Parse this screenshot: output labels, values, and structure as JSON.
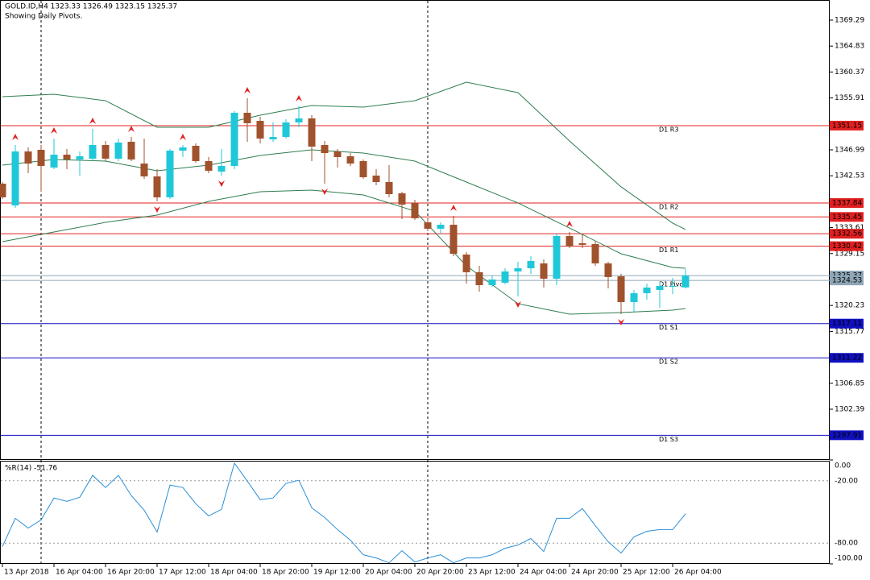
{
  "chart_data": [
    {
      "type": "candlestick",
      "title": "GOLD.ID,H4  1323.33 1326.49 1323.15 1325.37",
      "subtitle": "Showing Daily Pivots.",
      "categories": [
        "13 Apr 2018",
        null,
        null,
        null,
        "16 Apr 04:00",
        null,
        null,
        null,
        "16 Apr 20:00",
        null,
        null,
        null,
        "17 Apr 12:00",
        null,
        null,
        null,
        "18 Apr 04:00",
        null,
        null,
        null,
        "18 Apr 20:00",
        null,
        null,
        null,
        "19 Apr 12:00",
        null,
        null,
        null,
        "20 Apr 04:00",
        null,
        null,
        null,
        "20 Apr 20:00",
        null,
        null,
        null,
        "23 Apr 12:00",
        null,
        null,
        null,
        "24 Apr 04:00",
        null,
        null,
        null,
        "24 Apr 20:00",
        null,
        null,
        null,
        "25 Apr 12:00",
        null,
        null,
        null,
        "26 Apr 04:00",
        null
      ],
      "ohlc": [
        [
          1341.17,
          1341.45,
          1338.54,
          1338.82
        ],
        [
          1337.43,
          1347.82,
          1337.02,
          1346.71
        ],
        [
          1346.71,
          1347.4,
          1342.97,
          1344.63
        ],
        [
          1346.99,
          1347.82,
          1339.79,
          1344.22
        ],
        [
          1343.94,
          1348.93,
          1343.66,
          1346.16
        ],
        [
          1346.16,
          1347.13,
          1343.66,
          1345.33
        ],
        [
          1345.33,
          1346.71,
          1342.56,
          1345.88
        ],
        [
          1345.47,
          1350.59,
          1345.05,
          1347.82
        ],
        [
          1347.82,
          1348.51,
          1345.05,
          1345.47
        ],
        [
          1345.47,
          1348.93,
          1345.05,
          1348.24
        ],
        [
          1348.37,
          1349.2,
          1345.05,
          1345.33
        ],
        [
          1344.63,
          1348.93,
          1342.0,
          1342.42
        ],
        [
          1342.42,
          1343.66,
          1338.12,
          1338.82
        ],
        [
          1338.82,
          1347.13,
          1338.54,
          1346.85
        ],
        [
          1346.85,
          1347.82,
          1345.74,
          1347.4
        ],
        [
          1347.68,
          1348.1,
          1344.77,
          1345.05
        ],
        [
          1345.05,
          1345.74,
          1342.97,
          1343.39
        ],
        [
          1343.25,
          1347.13,
          1342.56,
          1344.22
        ],
        [
          1344.22,
          1353.64,
          1343.66,
          1353.36
        ],
        [
          1353.36,
          1355.85,
          1348.37,
          1351.56
        ],
        [
          1351.97,
          1352.67,
          1348.1,
          1348.93
        ],
        [
          1348.79,
          1351.7,
          1348.37,
          1349.2
        ],
        [
          1349.2,
          1352.25,
          1348.93,
          1351.7
        ],
        [
          1351.7,
          1354.47,
          1350.87,
          1352.39
        ],
        [
          1352.39,
          1352.94,
          1345.05,
          1347.54
        ],
        [
          1347.82,
          1348.51,
          1341.17,
          1346.43
        ],
        [
          1346.71,
          1347.13,
          1343.94,
          1345.74
        ],
        [
          1345.88,
          1346.43,
          1344.22,
          1344.63
        ],
        [
          1345.05,
          1345.33,
          1342.0,
          1342.28
        ],
        [
          1342.56,
          1343.66,
          1340.89,
          1341.45
        ],
        [
          1341.45,
          1344.36,
          1338.82,
          1339.37
        ],
        [
          1339.51,
          1339.79,
          1335.08,
          1337.57
        ],
        [
          1337.85,
          1338.4,
          1334.94,
          1335.22
        ],
        [
          1334.52,
          1335.08,
          1333.0,
          1333.42
        ],
        [
          1333.42,
          1334.52,
          1332.58,
          1334.11
        ],
        [
          1334.11,
          1335.63,
          1328.71,
          1329.12
        ],
        [
          1328.98,
          1329.4,
          1324.0,
          1325.94
        ],
        [
          1325.94,
          1327.04,
          1322.61,
          1323.72
        ],
        [
          1323.72,
          1325.38,
          1323.44,
          1324.69
        ],
        [
          1324.14,
          1326.63,
          1323.86,
          1326.08
        ],
        [
          1326.08,
          1327.74,
          1321.78,
          1326.63
        ],
        [
          1326.63,
          1328.71,
          1325.66,
          1327.88
        ],
        [
          1327.46,
          1328.15,
          1323.31,
          1324.83
        ],
        [
          1324.83,
          1332.58,
          1323.72,
          1332.17
        ],
        [
          1332.17,
          1332.86,
          1330.09,
          1330.37
        ],
        [
          1330.92,
          1332.58,
          1330.09,
          1330.65
        ],
        [
          1330.78,
          1331.2,
          1327.04,
          1327.46
        ],
        [
          1327.46,
          1327.74,
          1323.17,
          1325.11
        ],
        [
          1325.24,
          1325.66,
          1318.73,
          1320.81
        ],
        [
          1320.81,
          1322.89,
          1319.15,
          1322.34
        ],
        [
          1322.34,
          1324.0,
          1321.23,
          1323.31
        ],
        [
          1322.89,
          1324.27,
          1319.84,
          1323.58
        ],
        [
          1323.44,
          1324.97,
          1322.2,
          1323.58
        ],
        [
          1323.33,
          1326.49,
          1323.15,
          1325.37
        ]
      ],
      "up_color": "#1fc8d8",
      "down_color": "#a0522d",
      "bands": [
        {
          "color": "#2e7d4f",
          "x": [
            0,
            4,
            8,
            12,
            16,
            20,
            24,
            28,
            32,
            36,
            40,
            44,
            48,
            52,
            53
          ],
          "values": [
            1356.13,
            1356.55,
            1355.44,
            1350.87,
            1350.87,
            1352.94,
            1354.61,
            1354.33,
            1355.44,
            1358.62,
            1356.82,
            1348.51,
            1340.62,
            1334.39,
            1333.28
          ]
        },
        {
          "color": "#2e7d4f",
          "x": [
            0,
            4,
            8,
            12,
            16,
            20,
            24,
            28,
            32,
            36,
            40,
            44,
            48,
            52,
            53
          ],
          "values": [
            1344.36,
            1345.33,
            1345.05,
            1343.39,
            1344.36,
            1346.02,
            1346.99,
            1346.43,
            1345.05,
            1341.45,
            1337.85,
            1333.55,
            1329.12,
            1326.77,
            1326.63
          ]
        },
        {
          "color": "#2e7d4f",
          "x": [
            0,
            4,
            8,
            12,
            16,
            20,
            24,
            28,
            32,
            36,
            40,
            44,
            48,
            52,
            53
          ],
          "values": [
            1331.2,
            1332.86,
            1334.52,
            1335.77,
            1338.12,
            1339.79,
            1340.06,
            1339.23,
            1336.46,
            1327.04,
            1320.54,
            1318.73,
            1319.01,
            1319.43,
            1319.7
          ]
        }
      ],
      "fractals": {
        "color": "#e02020",
        "up": [
          1,
          4,
          7,
          10,
          14,
          19,
          23,
          35,
          44
        ],
        "down": [
          12,
          17,
          25,
          40,
          48
        ]
      },
      "levels": [
        {
          "label": "D1 R3",
          "value": 1351.15,
          "color": "#e02020"
        },
        {
          "label": "D1 R2",
          "value": 1337.84,
          "color": "#e02020"
        },
        {
          "value": 1335.45,
          "color": "#e02020"
        },
        {
          "value": 1332.56,
          "color": "#e02020"
        },
        {
          "label": "D1 R1",
          "value": 1330.42,
          "color": "#e02020"
        },
        {
          "value": 1325.37,
          "color": "#8fa6b8"
        },
        {
          "label": "D1 Pivot",
          "value": 1324.53,
          "color": "#8fa6b8"
        },
        {
          "label": "D1 S1",
          "value": 1317.11,
          "color": "#1010c0"
        },
        {
          "label": "D1 S2",
          "value": 1311.22,
          "color": "#1010c0"
        },
        {
          "label": "D1 S3",
          "value": 1297.91,
          "color": "#1010c0"
        }
      ],
      "ylim": [
        1293.8,
        1372.75
      ],
      "yticks": [
        1369.29,
        1364.83,
        1360.37,
        1355.91,
        1346.99,
        1342.53,
        1333.61,
        1329.15,
        1320.23,
        1315.77,
        1306.85,
        1302.39
      ]
    },
    {
      "type": "line",
      "title": "%R(14) -51.76",
      "color": "#2a8fd8",
      "values": [
        -83.4,
        -56.1,
        -65.5,
        -57.7,
        -36.6,
        -39.8,
        -35.9,
        -14.8,
        -26.5,
        -14.8,
        -34.3,
        -48.3,
        -69.4,
        -24.2,
        -26.5,
        -42.1,
        -53.8,
        -47.5,
        -3.1,
        -20.3,
        -38.2,
        -36.6,
        -22.6,
        -19.5,
        -46.0,
        -55.3,
        -67.0,
        -77.2,
        -91.2,
        -94.3,
        -99.0,
        -87.3,
        -98.2,
        -94.3,
        -91.2,
        -99.0,
        -94.3,
        -94.3,
        -91.2,
        -85.0,
        -81.8,
        -75.6,
        -88.1,
        -56.1,
        -56.1,
        -46.8,
        -63.1,
        -78.7,
        -89.6,
        -74.0,
        -68.6,
        -67.0,
        -67.0,
        -51.76
      ],
      "ylim": [
        -100,
        0
      ],
      "yticks": [
        {
          "value": 0,
          "label": "0.00"
        },
        {
          "value": -20,
          "label": "-20.00"
        },
        {
          "value": -80,
          "label": "-80.00"
        },
        {
          "value": -100,
          "label": "-100.00"
        }
      ]
    }
  ]
}
